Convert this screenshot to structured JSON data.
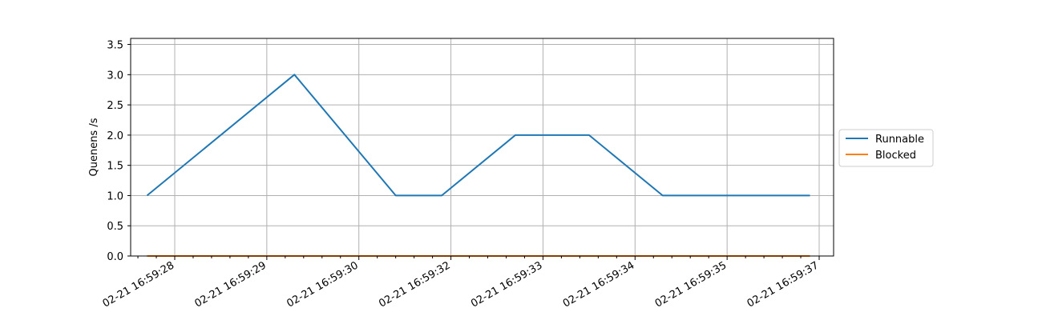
{
  "chart_data": {
    "type": "line",
    "title": "",
    "xlabel": "",
    "ylabel": "Quenens /s",
    "x": [
      "02-21 16:59:27.7",
      "02-21 16:59:29.3",
      "02-21 16:59:30.8",
      "02-21 16:59:31.8",
      "02-21 16:59:32.7",
      "02-21 16:59:33.5",
      "02-21 16:59:34.3",
      "02-21 16:59:35.0",
      "02-21 16:59:36.8"
    ],
    "xtick_labels": [
      "02-21 16:59:28",
      "02-21 16:59:29",
      "02-21 16:59:30",
      "02-21 16:59:32",
      "02-21 16:59:33",
      "02-21 16:59:34",
      "02-21 16:59:35",
      "02-21 16:59:37"
    ],
    "ylim": [
      0,
      3.6
    ],
    "yticks": [
      0.0,
      0.5,
      1.0,
      1.5,
      2.0,
      2.5,
      3.0,
      3.5
    ],
    "ytick_labels": [
      "0.0",
      "0.5",
      "1.0",
      "1.5",
      "2.0",
      "2.5",
      "3.0",
      "3.5"
    ],
    "grid": true,
    "legend_position": "right, outside plot area",
    "series": [
      {
        "name": "Runnable",
        "color": "#1f77b4",
        "values": [
          1,
          3,
          1,
          1,
          2,
          2,
          1,
          1,
          1
        ]
      },
      {
        "name": "Blocked",
        "color": "#ff7f0e",
        "values": [
          0,
          0,
          0,
          0,
          0,
          0,
          0,
          0,
          0
        ]
      }
    ]
  }
}
